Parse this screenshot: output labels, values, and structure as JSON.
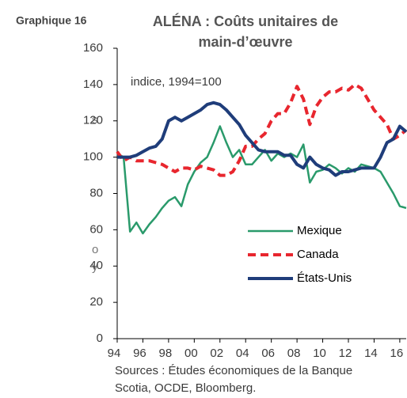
{
  "label": "Graphique 16",
  "left_fragments": [
    "s",
    "o",
    "y"
  ],
  "chart_data": {
    "type": "line",
    "title": [
      "ALÉNA : Coûts unitaires de",
      "main-d’œuvre"
    ],
    "annotation": "indice, 1994=100",
    "source": [
      "Sources : Études économiques de la Banque",
      "Scotia, OCDE, Bloomberg."
    ],
    "x": [
      1994,
      1994.5,
      1995,
      1995.5,
      1996,
      1996.5,
      1997,
      1997.5,
      1998,
      1998.5,
      1999,
      1999.5,
      2000,
      2000.5,
      2001,
      2001.5,
      2002,
      2002.5,
      2003,
      2003.5,
      2004,
      2004.5,
      2005,
      2005.5,
      2006,
      2006.5,
      2007,
      2007.5,
      2008,
      2008.5,
      2009,
      2009.5,
      2010,
      2010.5,
      2011,
      2011.5,
      2012,
      2012.5,
      2013,
      2013.5,
      2014,
      2014.5,
      2015,
      2015.5,
      2016,
      2016.5
    ],
    "series": [
      {
        "name": "Mexique",
        "color": "#2a9a6b",
        "dash": false,
        "width": 2.5,
        "values": [
          102,
          100,
          59,
          64,
          58,
          63,
          67,
          72,
          76,
          78,
          73,
          85,
          92,
          97,
          100,
          108,
          117,
          108,
          100,
          104,
          96,
          96,
          100,
          104,
          98,
          102,
          100,
          102,
          100,
          107,
          86,
          92,
          93,
          96,
          94,
          91,
          94,
          92,
          96,
          95,
          94,
          92,
          86,
          80,
          73,
          72
        ]
      },
      {
        "name": "Canada",
        "color": "#e8262e",
        "dash": true,
        "width": 4,
        "values": [
          103,
          98,
          100,
          98,
          98,
          98,
          97,
          96,
          94,
          92,
          94,
          94,
          93,
          95,
          94,
          93,
          90,
          90,
          92,
          98,
          106,
          106,
          110,
          113,
          120,
          124,
          124,
          130,
          139,
          132,
          118,
          128,
          133,
          136,
          136,
          138,
          137,
          140,
          138,
          132,
          126,
          122,
          118,
          110,
          112,
          115
        ]
      },
      {
        "name": "États-Unis",
        "color": "#1f3d7a",
        "dash": false,
        "width": 4,
        "values": [
          100,
          100,
          100,
          101,
          103,
          105,
          106,
          110,
          120,
          122,
          120,
          122,
          124,
          126,
          129,
          130,
          129,
          126,
          122,
          118,
          112,
          108,
          104,
          103,
          103,
          103,
          101,
          101,
          96,
          94,
          100,
          96,
          94,
          93,
          90,
          92,
          92,
          93,
          94,
          94,
          94,
          100,
          108,
          110,
          117,
          114
        ]
      }
    ],
    "xlim": [
      1994,
      2016.5
    ],
    "xticks": [
      {
        "value": 1994,
        "label": "94"
      },
      {
        "value": 1996,
        "label": "96"
      },
      {
        "value": 1998,
        "label": "98"
      },
      {
        "value": 2000,
        "label": "00"
      },
      {
        "value": 2002,
        "label": "02"
      },
      {
        "value": 2004,
        "label": "04"
      },
      {
        "value": 2006,
        "label": "06"
      },
      {
        "value": 2008,
        "label": "08"
      },
      {
        "value": 2010,
        "label": "10"
      },
      {
        "value": 2012,
        "label": "12"
      },
      {
        "value": 2014,
        "label": "14"
      },
      {
        "value": 2016,
        "label": "16"
      }
    ],
    "ylim": [
      0,
      160
    ],
    "yticks": [
      0,
      20,
      40,
      60,
      80,
      100,
      120,
      140,
      160
    ],
    "grid": false,
    "legend": "lower right"
  }
}
